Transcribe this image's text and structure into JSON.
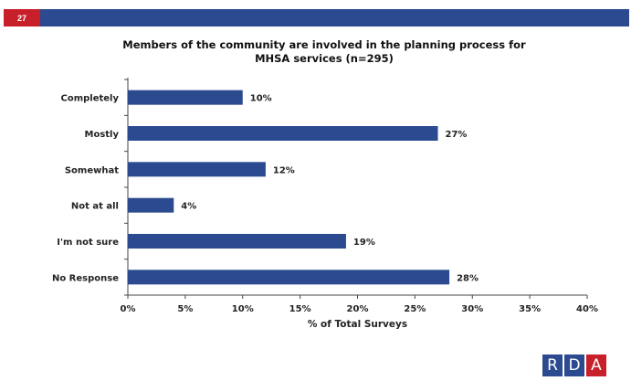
{
  "header": {
    "page_number": "27",
    "bar_color": "#2b4a8f",
    "badge_color": "#c8202a"
  },
  "logo": {
    "letters": [
      "R",
      "D",
      "A"
    ],
    "colors": [
      "#2b4a8f",
      "#2b4a8f",
      "#c8202a"
    ]
  },
  "chart_data": {
    "type": "bar",
    "orientation": "horizontal",
    "title_line1": "Members of the community are involved in the planning process for",
    "title_line2": "MHSA services (n=295)",
    "categories": [
      "Completely",
      "Mostly",
      "Somewhat",
      "Not at all",
      "I'm not sure",
      "No Response"
    ],
    "values": [
      10,
      27,
      12,
      4,
      19,
      28
    ],
    "value_labels": [
      "10%",
      "27%",
      "12%",
      "4%",
      "19%",
      "28%"
    ],
    "xlim": [
      0,
      40
    ],
    "xticks": [
      0,
      5,
      10,
      15,
      20,
      25,
      30,
      35,
      40
    ],
    "xtick_labels": [
      "0%",
      "5%",
      "10%",
      "15%",
      "20%",
      "25%",
      "30%",
      "35%",
      "40%"
    ],
    "xlabel": "% of Total Surveys",
    "bar_color": "#2b4a8f",
    "grid": false
  }
}
